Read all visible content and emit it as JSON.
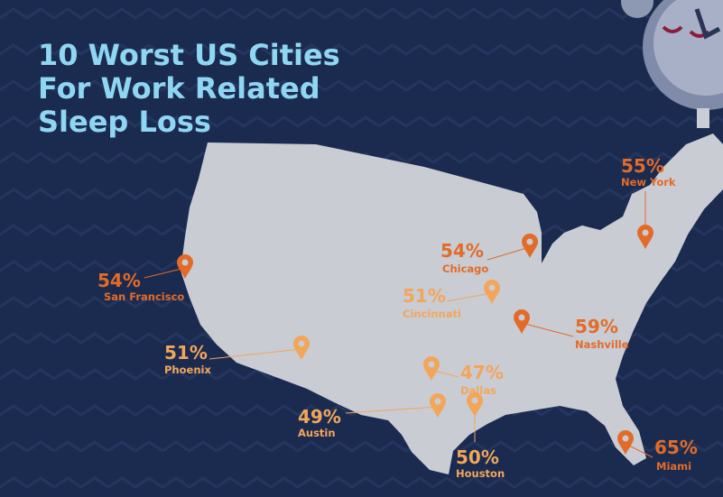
{
  "title_lines": [
    "10 Worst US Cities",
    "For Work Related",
    "Sleep Loss"
  ],
  "cities": [
    {
      "name": "San Francisco",
      "percent": "54%",
      "color": "#e36b28"
    },
    {
      "name": "Chicago",
      "percent": "54%",
      "color": "#e36b28"
    },
    {
      "name": "New York",
      "percent": "55%",
      "color": "#e36b28"
    },
    {
      "name": "Cincinnati",
      "percent": "51%",
      "color": "#f2a65a"
    },
    {
      "name": "Nashville",
      "percent": "59%",
      "color": "#e36b28"
    },
    {
      "name": "Phoenix",
      "percent": "51%",
      "color": "#f2a65a"
    },
    {
      "name": "Dallas",
      "percent": "47%",
      "color": "#f2a65a"
    },
    {
      "name": "Austin",
      "percent": "49%",
      "color": "#f2a65a"
    },
    {
      "name": "Houston",
      "percent": "50%",
      "color": "#f2a65a"
    },
    {
      "name": "Miami",
      "percent": "65%",
      "color": "#e36b28"
    }
  ]
}
